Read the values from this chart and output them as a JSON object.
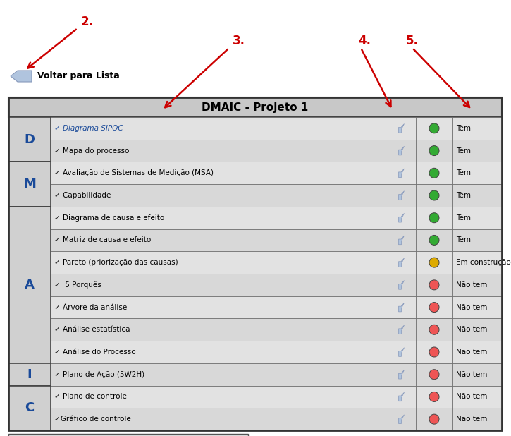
{
  "title": "DMAIC - Projeto 1",
  "back_button_text": "Voltar para Lista",
  "bg_color": "#d9d9d9",
  "header_bg": "#c8c8c8",
  "phase_bg": "#d0d0d0",
  "row_bg_even": "#e2e2e2",
  "row_bg_odd": "#d8d8d8",
  "border_color": "#444444",
  "letter_color": "#1a4a99",
  "rows": [
    {
      "phase": "D",
      "tool": "✓ Diagrama SIPOC",
      "italic": true,
      "status": "Tem",
      "status_color": "#33aa33"
    },
    {
      "phase": "D",
      "tool": "✓ Mapa do processo",
      "italic": false,
      "status": "Tem",
      "status_color": "#33aa33"
    },
    {
      "phase": "M",
      "tool": "✓ Avaliação de Sistemas de Medição (MSA)",
      "italic": false,
      "status": "Tem",
      "status_color": "#33aa33"
    },
    {
      "phase": "M",
      "tool": "✓ Capabilidade",
      "italic": false,
      "status": "Tem",
      "status_color": "#33aa33"
    },
    {
      "phase": "A",
      "tool": "✓ Diagrama de causa e efeito",
      "italic": false,
      "status": "Tem",
      "status_color": "#33aa33"
    },
    {
      "phase": "A",
      "tool": "✓ Matriz de causa e efeito",
      "italic": false,
      "status": "Tem",
      "status_color": "#33aa33"
    },
    {
      "phase": "A",
      "tool": "✓ Pareto (priorização das causas)",
      "italic": false,
      "status": "Em construção",
      "status_color": "#ddaa00"
    },
    {
      "phase": "A",
      "tool": "✓  5 Porquês",
      "italic": false,
      "status": "Não tem",
      "status_color": "#ee5555"
    },
    {
      "phase": "A",
      "tool": "✓ Árvore da análise",
      "italic": false,
      "status": "Não tem",
      "status_color": "#ee5555"
    },
    {
      "phase": "A",
      "tool": "✓ Análise estatística",
      "italic": false,
      "status": "Não tem",
      "status_color": "#ee5555"
    },
    {
      "phase": "A",
      "tool": "✓ Análise do Processo",
      "italic": false,
      "status": "Não tem",
      "status_color": "#ee5555"
    },
    {
      "phase": "I",
      "tool": "✓ Plano de Ação (5W2H)",
      "italic": false,
      "status": "Não tem",
      "status_color": "#ee5555"
    },
    {
      "phase": "C",
      "tool": "✓ Plano de controle",
      "italic": false,
      "status": "Não tem",
      "status_color": "#ee5555"
    },
    {
      "phase": "C",
      "tool": "✓Gráfico de controle",
      "italic": false,
      "status": "Não tem",
      "status_color": "#ee5555"
    }
  ],
  "legend": [
    {
      "color": "#33aa33",
      "label": "Tem"
    },
    {
      "color": "#ee5555",
      "label": "Não tem"
    },
    {
      "color": "#ddaa00",
      "label": "Em construção"
    }
  ],
  "figwidth": 7.25,
  "figheight": 6.18,
  "dpi": 100
}
